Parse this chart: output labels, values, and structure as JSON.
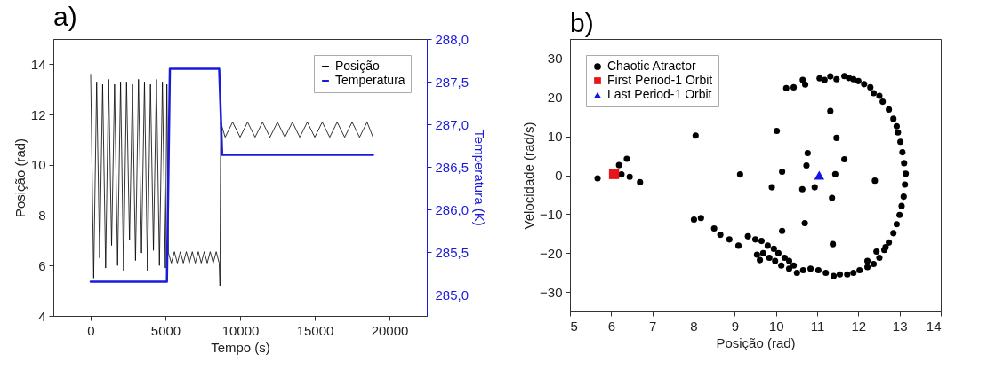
{
  "chart_data": [
    {
      "type": "line",
      "title": "a)",
      "xlabel": "Tempo (s)",
      "ylabel": "Posição (rad)",
      "y2label": "Temperatura (K)",
      "xlim": [
        -2500,
        22500
      ],
      "xticks": [
        0,
        5000,
        10000,
        15000,
        20000
      ],
      "ylim": [
        4,
        15
      ],
      "yticks": [
        4,
        6,
        8,
        10,
        12,
        14
      ],
      "y2lim": [
        284.75,
        288
      ],
      "y2ticks": [
        {
          "value": 285,
          "label": "285,0"
        },
        {
          "value": 285.5,
          "label": "285,5"
        },
        {
          "value": 286,
          "label": "286,0"
        },
        {
          "value": 286.5,
          "label": "286,5"
        },
        {
          "value": 287,
          "label": "287,0"
        },
        {
          "value": 287.5,
          "label": "287,5"
        },
        {
          "value": 288,
          "label": "288,0"
        }
      ],
      "legend": "top right",
      "series": [
        {
          "name": "Posição",
          "color": "#000000",
          "x": [
            0,
            200,
            400,
            600,
            800,
            1000,
            1200,
            1400,
            1600,
            1800,
            2000,
            2200,
            2400,
            2600,
            2800,
            3000,
            3200,
            3400,
            3600,
            3800,
            4000,
            4200,
            4400,
            4600,
            4800,
            5000,
            5100,
            5200,
            5400,
            5600,
            5800,
            6000,
            6200,
            6400,
            6600,
            6800,
            7000,
            7200,
            7400,
            7600,
            7800,
            8000,
            8200,
            8400,
            8600,
            8650,
            8700,
            9000,
            9500,
            10000,
            10500,
            11000,
            11500,
            12000,
            12500,
            13000,
            13500,
            14000,
            14500,
            15000,
            15500,
            16000,
            16500,
            17000,
            17500,
            18000,
            18500,
            18900
          ],
          "values": [
            13.6,
            5.5,
            13.3,
            6.3,
            13.2,
            5.9,
            13.4,
            6.8,
            13.2,
            6.0,
            13.3,
            5.8,
            13.3,
            7.0,
            13.2,
            6.2,
            13.4,
            6.5,
            13.3,
            5.8,
            13.2,
            6.6,
            13.4,
            6.0,
            13.3,
            5.9,
            13.2,
            6.5,
            6.1,
            6.55,
            6.1,
            6.55,
            6.1,
            6.55,
            6.1,
            6.55,
            6.1,
            6.55,
            6.1,
            6.55,
            6.1,
            6.55,
            6.1,
            6.55,
            6.1,
            5.2,
            11.7,
            11.1,
            11.7,
            11.1,
            11.7,
            11.1,
            11.7,
            11.1,
            11.7,
            11.1,
            11.7,
            11.1,
            11.7,
            11.1,
            11.7,
            11.1,
            11.7,
            11.1,
            11.7,
            11.1,
            11.7,
            11.1
          ]
        },
        {
          "name": "Temperatura",
          "color": "#1a1adc",
          "axis": "y2",
          "x": [
            0,
            5100,
            5300,
            8600,
            8800,
            18900
          ],
          "values": [
            285.15,
            285.15,
            287.65,
            287.65,
            286.64,
            286.64
          ]
        }
      ]
    },
    {
      "type": "scatter",
      "title": "b)",
      "xlabel": "Posição (rad)",
      "ylabel": "Velocidade (rad/s)",
      "xlim": [
        5,
        14
      ],
      "xticks": [
        5,
        6,
        7,
        8,
        9,
        10,
        11,
        12,
        13,
        14
      ],
      "ylim": [
        -35,
        35
      ],
      "yticks": [
        -30,
        -20,
        -10,
        0,
        10,
        20,
        30
      ],
      "legend": "top left",
      "series": [
        {
          "name": "Chaotic Atractor",
          "color": "#000000",
          "marker": "circle",
          "x": [
            5.67,
            6.19,
            6.38,
            6.45,
            6.7,
            6.25,
            8.05,
            8.01,
            8.18,
            9.13,
            9.9,
            10.02,
            10.15,
            10.15,
            10.64,
            10.7,
            10.77,
            10.74,
            10.94,
            11.32,
            11.36,
            11.47,
            11.44,
            11.66,
            11.38,
            12.4,
            10.25,
            10.43,
            10.65,
            10.71,
            11.06,
            11.18,
            11.32,
            11.47,
            11.66,
            11.77,
            11.88,
            12.0,
            12.14,
            12.29,
            12.37,
            12.51,
            12.59,
            12.74,
            12.85,
            12.93,
            12.96,
            13.02,
            13.07,
            13.11,
            13.15,
            13.13,
            13.1,
            13.05,
            13.0,
            12.93,
            12.85,
            12.74,
            12.63,
            12.51,
            12.37,
            12.22,
            12.03,
            11.88,
            11.73,
            11.55,
            11.4,
            11.21,
            11.03,
            10.84,
            10.66,
            10.51,
            10.43,
            10.32,
            10.21,
            10.06,
            9.95,
            9.8,
            9.65,
            9.5,
            9.32,
            9.69,
            9.84,
            9.98,
            10.13,
            10.32,
            9.54,
            9.61,
            9.09,
            8.87,
            8.65,
            8.5,
            12.22,
            12.44,
            12.66
          ],
          "values": [
            -0.8,
            2.6,
            4.2,
            -0.4,
            -1.8,
            0.2,
            10.2,
            -11.4,
            -11.0,
            0.2,
            -3.1,
            11.4,
            0.9,
            -14.3,
            -3.6,
            -12.3,
            5.7,
            2.5,
            -3.1,
            16.5,
            -5.8,
            9.6,
            0.3,
            4.1,
            -17.7,
            -1.4,
            22.4,
            22.6,
            24.5,
            23.3,
            24.9,
            24.5,
            25.4,
            24.7,
            25.5,
            25.0,
            24.7,
            24.2,
            23.4,
            22.6,
            21.1,
            20.4,
            18.9,
            16.9,
            14.5,
            12.6,
            11.0,
            8.6,
            5.9,
            3.1,
            0.4,
            -2.4,
            -5.5,
            -7.9,
            -10.2,
            -12.6,
            -14.9,
            -17.3,
            -19.2,
            -21.2,
            -22.8,
            -23.6,
            -24.4,
            -25.1,
            -25.5,
            -25.5,
            -25.9,
            -25.1,
            -24.4,
            -24.0,
            -24.4,
            -25.1,
            -23.2,
            -22.0,
            -21.2,
            -20.0,
            -18.9,
            -18.1,
            -16.9,
            -16.5,
            -15.7,
            -20.0,
            -21.2,
            -22.0,
            -23.2,
            -24.0,
            -20.4,
            -21.8,
            -18.1,
            -16.5,
            -15.3,
            -13.7,
            -22.0,
            -19.6,
            -18.5
          ]
        },
        {
          "name": "First Period-1 Orbit",
          "color": "#e8161b",
          "marker": "square",
          "x": [
            6.07
          ],
          "values": [
            0.3
          ]
        },
        {
          "name": "Last Period-1 Orbit",
          "color": "#1414e6",
          "marker": "triangle",
          "x": [
            11.05
          ],
          "values": [
            0.0
          ]
        }
      ]
    }
  ]
}
